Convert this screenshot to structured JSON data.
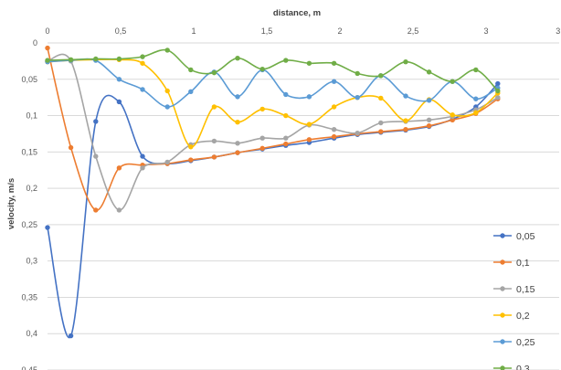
{
  "chart_data": {
    "type": "line",
    "xlabel": "distance, m",
    "ylabel": "velocity, m/s",
    "xlim": [
      0,
      3.5
    ],
    "ylim": [
      0,
      0.45
    ],
    "y_reversed": true,
    "x_axis_position": "top",
    "decimal_separator": ",",
    "x_ticks": [
      "0",
      "0,5",
      "1",
      "1,5",
      "2",
      "2,5",
      "3",
      "3,"
    ],
    "y_ticks": [
      "0",
      "0,05",
      "0,1",
      "0,15",
      "0,2",
      "0,25",
      "0,3",
      "0,35",
      "0,4",
      "0,45"
    ],
    "grid": "horizontal",
    "legend_position": "right",
    "x": [
      0,
      0.16,
      0.33,
      0.49,
      0.65,
      0.82,
      0.98,
      1.14,
      1.3,
      1.47,
      1.63,
      1.79,
      1.96,
      2.12,
      2.28,
      2.45,
      2.61,
      2.77,
      2.93,
      3.08
    ],
    "series": [
      {
        "name": "0,05",
        "color": "#4472C4",
        "values": [
          0.254,
          0.403,
          0.108,
          0.081,
          0.156,
          0.166,
          0.162,
          0.157,
          0.151,
          0.146,
          0.141,
          0.137,
          0.131,
          0.126,
          0.123,
          0.12,
          0.115,
          0.105,
          0.088,
          0.056
        ]
      },
      {
        "name": "0,1",
        "color": "#ED7D31",
        "values": [
          0.007,
          0.144,
          0.23,
          0.172,
          0.168,
          0.166,
          0.161,
          0.157,
          0.151,
          0.145,
          0.139,
          0.133,
          0.129,
          0.125,
          0.122,
          0.119,
          0.114,
          0.106,
          0.097,
          0.077
        ]
      },
      {
        "name": "0,15",
        "color": "#A5A5A5",
        "values": [
          0.025,
          0.025,
          0.156,
          0.23,
          0.172,
          0.164,
          0.14,
          0.135,
          0.138,
          0.131,
          0.131,
          0.113,
          0.119,
          0.124,
          0.11,
          0.108,
          0.106,
          0.101,
          0.092,
          0.075
        ]
      },
      {
        "name": "0,2",
        "color": "#FFC000",
        "values": [
          0.026,
          0.024,
          0.023,
          0.023,
          0.028,
          0.066,
          0.143,
          0.088,
          0.109,
          0.091,
          0.1,
          0.112,
          0.088,
          0.075,
          0.076,
          0.107,
          0.078,
          0.099,
          0.096,
          0.069
        ]
      },
      {
        "name": "0,25",
        "color": "#5B9BD5",
        "values": [
          0.026,
          0.024,
          0.024,
          0.05,
          0.064,
          0.088,
          0.067,
          0.04,
          0.074,
          0.037,
          0.071,
          0.074,
          0.053,
          0.075,
          0.045,
          0.073,
          0.079,
          0.053,
          0.077,
          0.062
        ]
      },
      {
        "name": "0,3",
        "color": "#70AD47",
        "values": [
          0.024,
          0.023,
          0.022,
          0.022,
          0.019,
          0.01,
          0.037,
          0.041,
          0.021,
          0.036,
          0.024,
          0.028,
          0.028,
          0.042,
          0.045,
          0.026,
          0.04,
          0.053,
          0.037,
          0.066
        ]
      }
    ]
  }
}
